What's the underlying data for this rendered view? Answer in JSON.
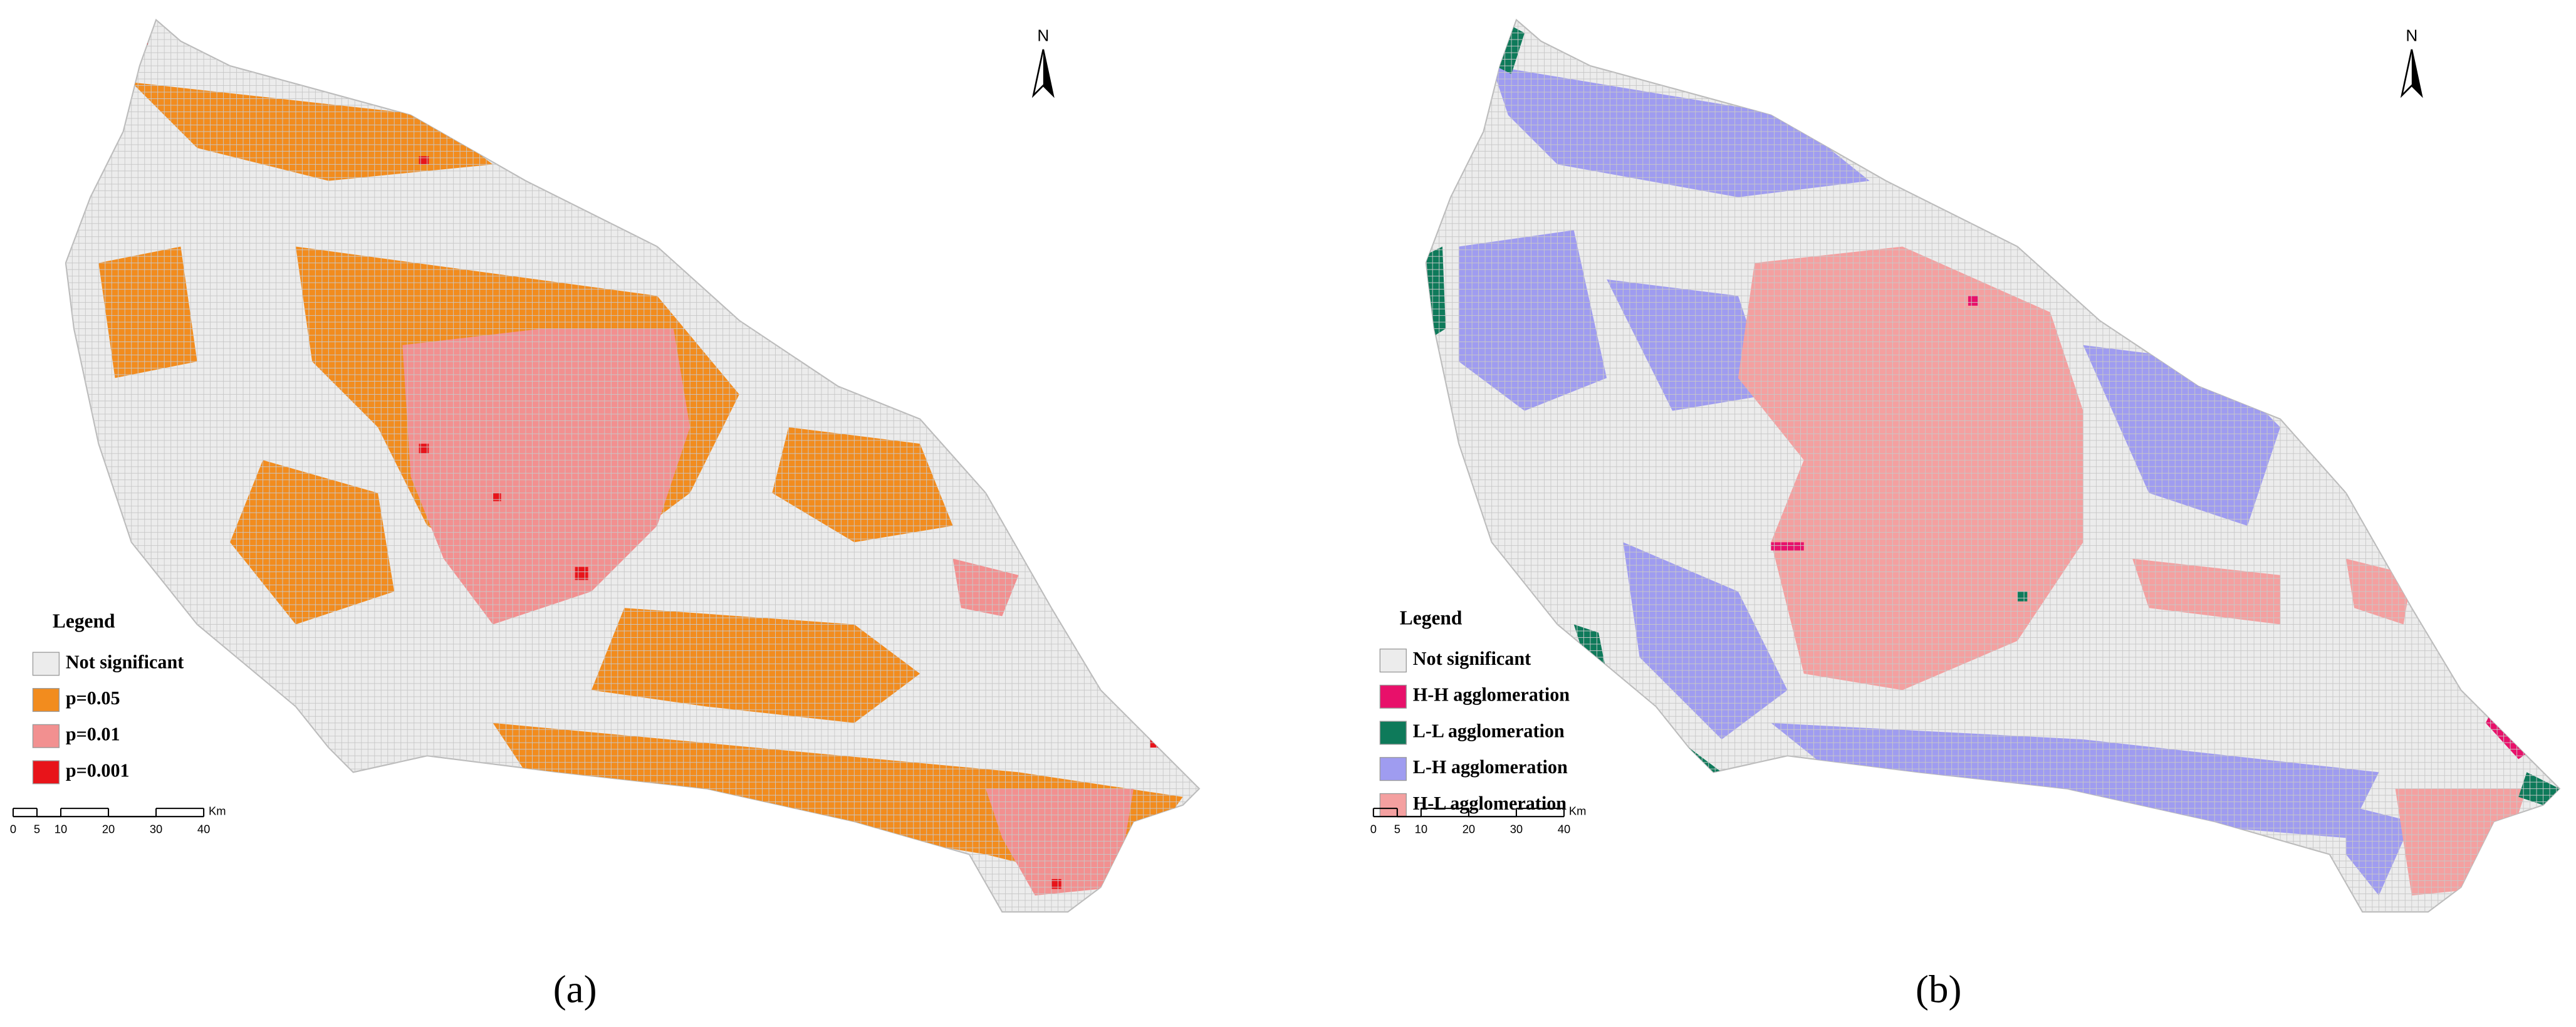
{
  "panels": [
    {
      "caption": "(a)",
      "north": "N",
      "legend": {
        "title": "Legend",
        "items": [
          {
            "label": "Not significant",
            "color": "#ececec"
          },
          {
            "label": "p=0.05",
            "color": "#f28c1e"
          },
          {
            "label": "p=0.01",
            "color": "#f29090"
          },
          {
            "label": "p=0.001",
            "color": "#e8141a"
          }
        ]
      },
      "scale": {
        "ticks": [
          0,
          5,
          10,
          20,
          30,
          40
        ],
        "unit": "Km"
      }
    },
    {
      "caption": "(b)",
      "north": "N",
      "legend": {
        "title": "Legend",
        "items": [
          {
            "label": "Not significant",
            "color": "#ececec"
          },
          {
            "label": "H-H agglomeration",
            "color": "#e8106a"
          },
          {
            "label": "L-L agglomeration",
            "color": "#0e7a5a"
          },
          {
            "label": "L-H agglomeration",
            "color": "#9f9cf0"
          },
          {
            "label": "H-L agglomeration",
            "color": "#f4a0a0"
          }
        ]
      },
      "scale": {
        "ticks": [
          0,
          5,
          10,
          20,
          30,
          40
        ],
        "unit": "Km"
      }
    }
  ]
}
